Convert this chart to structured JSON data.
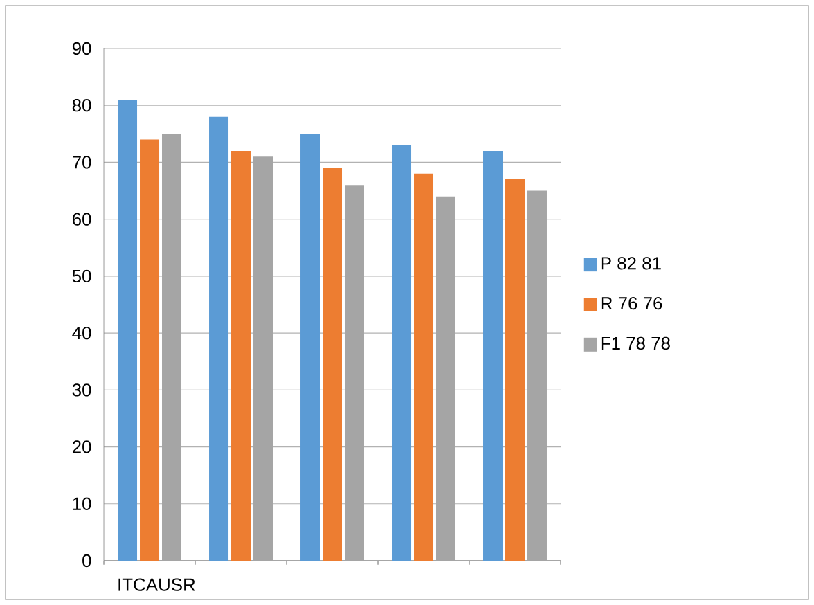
{
  "chart_data": {
    "type": "bar",
    "categories": [
      "ITCAUSR",
      null,
      null,
      null,
      null
    ],
    "series": [
      {
        "name": "P 82 81",
        "color": "#5b9bd5",
        "values": [
          81,
          78,
          75,
          73,
          72
        ]
      },
      {
        "name": "R 76 76",
        "color": "#ed7d31",
        "values": [
          74,
          72,
          69,
          68,
          67
        ]
      },
      {
        "name": "F1  78 78",
        "color": "#a5a5a5",
        "values": [
          75,
          71,
          66,
          64,
          65
        ]
      }
    ],
    "ylim": [
      0,
      90
    ],
    "yticks": [
      0,
      10,
      20,
      30,
      40,
      50,
      60,
      70,
      80,
      90
    ],
    "grid": "y",
    "legend": "right"
  }
}
